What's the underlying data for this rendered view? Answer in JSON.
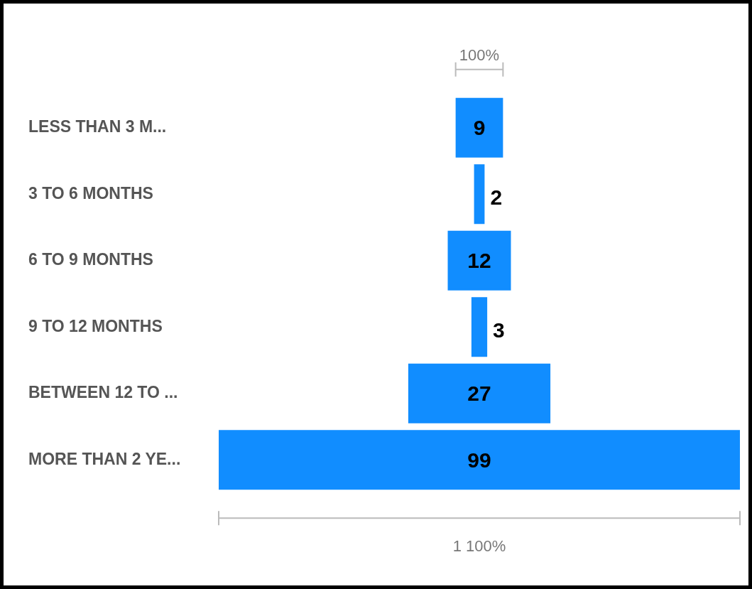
{
  "chart_data": {
    "type": "other",
    "categories": [
      "LESS THAN 3 M...",
      "3 TO 6 MONTHS",
      "6 TO 9 MONTHS",
      "9 TO 12 MONTHS",
      "BETWEEN 12 TO ...",
      "MORE THAN 2 YE..."
    ],
    "values": [
      9,
      2,
      12,
      3,
      27,
      99
    ],
    "color": "#118dff",
    "data_labels": true,
    "annotations": [
      "100%",
      "1 100%"
    ]
  }
}
